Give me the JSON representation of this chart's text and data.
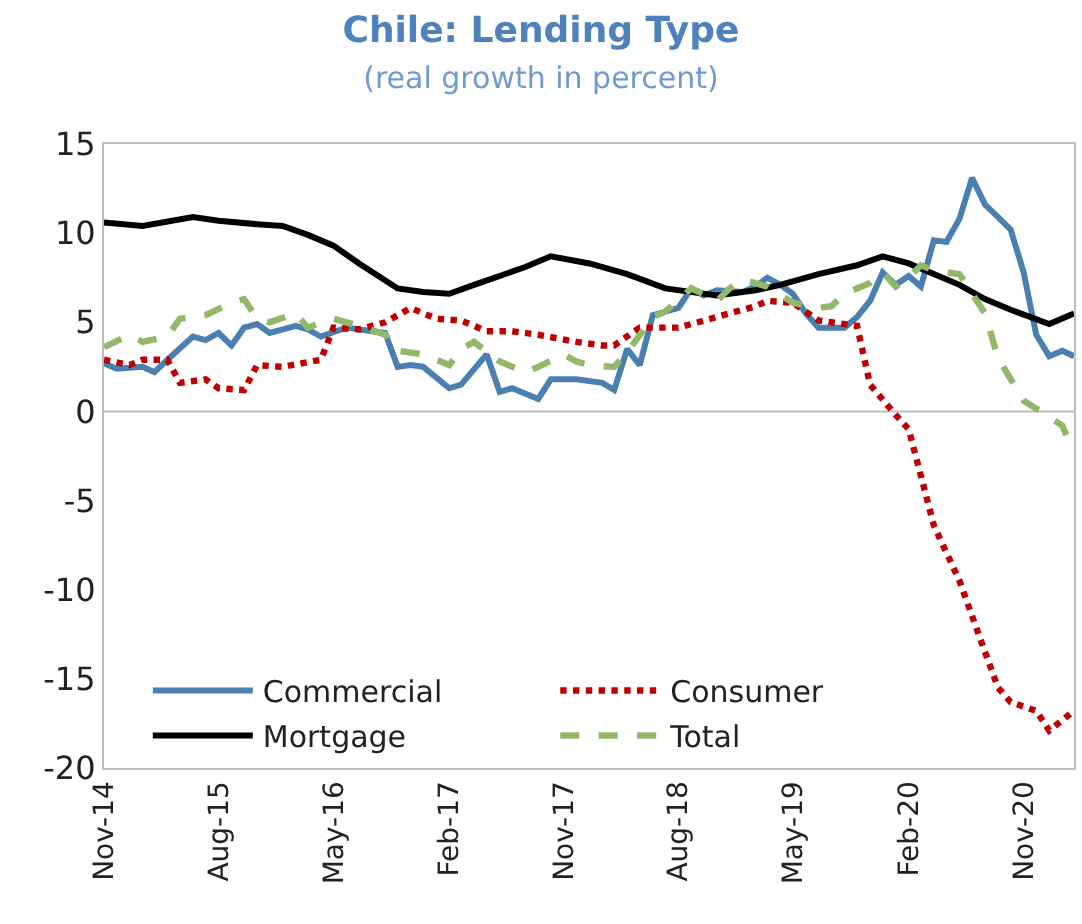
{
  "chart_data": {
    "type": "line",
    "title": "Chile: Lending Type",
    "subtitle": "(real growth in percent)",
    "xlim": [
      "2014-11",
      "2021-03"
    ],
    "xticks": [
      {
        "value": "2014-11",
        "label": "Nov-14"
      },
      {
        "value": "2015-08",
        "label": "Aug-15"
      },
      {
        "value": "2016-05",
        "label": "May-16"
      },
      {
        "value": "2017-02",
        "label": "Feb-17"
      },
      {
        "value": "2017-11",
        "label": "Nov-17"
      },
      {
        "value": "2018-08",
        "label": "Aug-18"
      },
      {
        "value": "2019-05",
        "label": "May-19"
      },
      {
        "value": "2020-02",
        "label": "Feb-20"
      },
      {
        "value": "2020-11",
        "label": "Nov-20"
      }
    ],
    "ylim": [
      -20,
      15
    ],
    "yticks": [
      -20,
      -15,
      -10,
      -5,
      0,
      5,
      10,
      15
    ],
    "grid": false,
    "legend": "bottom left",
    "ref_lines": [
      {
        "axis": "y",
        "value": 0,
        "color": "#bfbfbf"
      }
    ],
    "series": [
      {
        "name": "Commercial",
        "color": "#4a7fb0",
        "line_style": "solid",
        "x": [
          "2014-11",
          "2014-12",
          "2015-02",
          "2015-03",
          "2015-04",
          "2015-06",
          "2015-07",
          "2015-08",
          "2015-09",
          "2015-10",
          "2015-11",
          "2015-12",
          "2016-02",
          "2016-03",
          "2016-04",
          "2016-06",
          "2016-08",
          "2016-09",
          "2016-10",
          "2016-11",
          "2016-12",
          "2017-02",
          "2017-03",
          "2017-05",
          "2017-06",
          "2017-07",
          "2017-09",
          "2017-10",
          "2017-12",
          "2018-02",
          "2018-03",
          "2018-04",
          "2018-05",
          "2018-06",
          "2018-08",
          "2018-09",
          "2018-10",
          "2018-11",
          "2019-01",
          "2019-02",
          "2019-03",
          "2019-04",
          "2019-05",
          "2019-06",
          "2019-07",
          "2019-08",
          "2019-09",
          "2019-10",
          "2019-11",
          "2019-12",
          "2020-01",
          "2020-02",
          "2020-03",
          "2020-04",
          "2020-05",
          "2020-06",
          "2020-07",
          "2020-08",
          "2020-09",
          "2020-10",
          "2020-11",
          "2020-12",
          "2021-01",
          "2021-02",
          "2021-03"
        ],
        "values": [
          2.7,
          2.4,
          2.5,
          2.2,
          2.9,
          4.2,
          4.0,
          4.4,
          3.7,
          4.7,
          4.9,
          4.4,
          4.8,
          4.6,
          4.2,
          4.7,
          4.5,
          4.4,
          2.5,
          2.6,
          2.5,
          1.3,
          1.5,
          3.2,
          1.1,
          1.3,
          0.7,
          1.8,
          1.8,
          1.6,
          1.2,
          3.5,
          2.6,
          5.4,
          5.8,
          6.9,
          6.5,
          6.8,
          6.7,
          7.0,
          7.5,
          7.1,
          6.6,
          5.5,
          4.7,
          4.7,
          4.7,
          5.3,
          6.2,
          7.8,
          7.1,
          7.6,
          7.0,
          9.6,
          9.5,
          10.8,
          13.1,
          11.6,
          10.9,
          10.2,
          7.8,
          4.3,
          3.1,
          3.4,
          3.1
        ]
      },
      {
        "name": "Consumer",
        "color": "#c00000",
        "line_style": "dotted",
        "x": [
          "2014-11",
          "2015-01",
          "2015-02",
          "2015-04",
          "2015-05",
          "2015-07",
          "2015-08",
          "2015-10",
          "2015-11",
          "2016-01",
          "2016-04",
          "2016-05",
          "2016-07",
          "2016-09",
          "2016-11",
          "2017-01",
          "2017-03",
          "2017-05",
          "2017-07",
          "2017-09",
          "2017-12",
          "2018-02",
          "2018-03",
          "2018-05",
          "2018-08",
          "2018-09",
          "2018-12",
          "2019-02",
          "2019-03",
          "2019-05",
          "2019-07",
          "2019-10",
          "2019-11",
          "2020-01",
          "2020-02",
          "2020-03",
          "2020-04",
          "2020-06",
          "2020-08",
          "2020-09",
          "2020-10",
          "2020-12",
          "2021-01",
          "2021-03"
        ],
        "values": [
          2.9,
          2.6,
          2.9,
          2.9,
          1.6,
          1.8,
          1.3,
          1.2,
          2.6,
          2.5,
          2.9,
          4.7,
          4.6,
          5.0,
          5.8,
          5.2,
          5.1,
          4.5,
          4.5,
          4.3,
          3.9,
          3.7,
          3.7,
          4.7,
          4.7,
          4.9,
          5.5,
          5.9,
          6.2,
          6.1,
          5.1,
          4.8,
          1.5,
          -0.2,
          -1.0,
          -3.6,
          -6.4,
          -9.5,
          -13.5,
          -15.5,
          -16.3,
          -16.8,
          -17.9,
          -16.8
        ]
      },
      {
        "name": "Mortgage",
        "color": "#000000",
        "line_style": "solid",
        "x": [
          "2014-11",
          "2015-02",
          "2015-06",
          "2015-08",
          "2015-11",
          "2016-01",
          "2016-03",
          "2016-05",
          "2016-07",
          "2016-10",
          "2016-12",
          "2017-02",
          "2017-04",
          "2017-08",
          "2017-10",
          "2018-01",
          "2018-04",
          "2018-07",
          "2018-11",
          "2019-02",
          "2019-04",
          "2019-07",
          "2019-10",
          "2019-12",
          "2020-02",
          "2020-06",
          "2020-08",
          "2020-10",
          "2021-01",
          "2021-03"
        ],
        "values": [
          10.6,
          10.4,
          10.9,
          10.7,
          10.5,
          10.4,
          9.9,
          9.3,
          8.3,
          6.9,
          6.7,
          6.6,
          7.1,
          8.1,
          8.7,
          8.3,
          7.7,
          6.9,
          6.5,
          6.8,
          7.1,
          7.7,
          8.2,
          8.7,
          8.3,
          7.1,
          6.3,
          5.7,
          4.9,
          5.5
        ]
      },
      {
        "name": "Total",
        "color": "#92b96a",
        "line_style": "dashed",
        "x": [
          "2014-11",
          "2015-01",
          "2015-02",
          "2015-04",
          "2015-05",
          "2015-07",
          "2015-09",
          "2015-10",
          "2015-11",
          "2015-12",
          "2016-02",
          "2016-03",
          "2016-05",
          "2016-07",
          "2016-09",
          "2016-10",
          "2016-12",
          "2017-02",
          "2017-03",
          "2017-04",
          "2017-06",
          "2017-08",
          "2017-09",
          "2017-11",
          "2017-12",
          "2018-01",
          "2018-03",
          "2018-04",
          "2018-06",
          "2018-07",
          "2018-09",
          "2018-11",
          "2018-12",
          "2019-01",
          "2019-03",
          "2019-05",
          "2019-07",
          "2019-08",
          "2019-09",
          "2019-11",
          "2019-12",
          "2020-01",
          "2020-02",
          "2020-03",
          "2020-04",
          "2020-06",
          "2020-08",
          "2020-09",
          "2020-11",
          "2021-01",
          "2021-02",
          "2021-03"
        ],
        "values": [
          3.6,
          4.3,
          3.9,
          4.2,
          5.2,
          5.4,
          6.1,
          6.3,
          5.2,
          5.0,
          5.5,
          4.7,
          5.2,
          4.8,
          4.3,
          3.4,
          3.2,
          2.6,
          3.5,
          3.9,
          2.8,
          2.2,
          2.5,
          3.2,
          2.8,
          2.6,
          2.5,
          3.3,
          5.3,
          5.6,
          6.9,
          6.2,
          6.9,
          7.4,
          7.0,
          6.1,
          5.8,
          5.9,
          6.6,
          7.2,
          7.8,
          7.0,
          7.5,
          8.2,
          7.9,
          7.7,
          5.5,
          3.0,
          0.6,
          -0.3,
          -0.8,
          -2.3
        ]
      }
    ]
  }
}
